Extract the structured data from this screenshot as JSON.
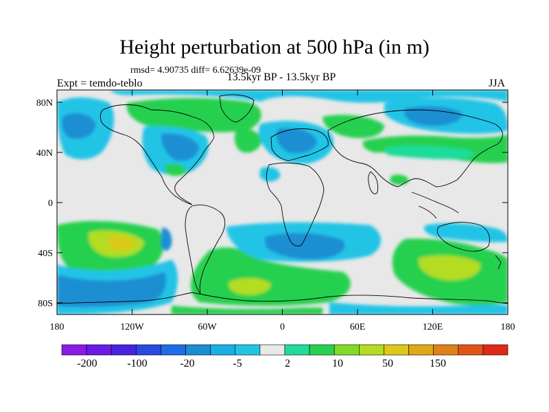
{
  "title": "Height perturbation at 500 hPa (in m)",
  "stats": "rmsd= 4.90735 diff= 6.62639e-09",
  "period": "13.5kyr BP - 13.5kyr BP",
  "experiment": "Expt = temdo-teblo",
  "season": "JJA",
  "map": {
    "lat_ticks": [
      "80N",
      "40N",
      "0",
      "40S",
      "80S"
    ],
    "lon_ticks": [
      "180",
      "120W",
      "60W",
      "0",
      "60E",
      "120E",
      "180"
    ]
  },
  "colorbar": {
    "labels": [
      "-200",
      "-100",
      "-20",
      "-5",
      "2",
      "10",
      "50",
      "150"
    ],
    "colors": [
      "#8a1be6",
      "#6a1be8",
      "#4a22e0",
      "#2a48e2",
      "#1e6ee6",
      "#1b8ed2",
      "#18aee6",
      "#22c4e6",
      "#e8e8e8",
      "#1fdc9a",
      "#28d050",
      "#80dc28",
      "#b4dc20",
      "#dcc818",
      "#e0a818",
      "#e08018",
      "#e05418",
      "#e02818"
    ]
  },
  "colors": {
    "land_outline": "#000000",
    "neutral_field": "#e8e8e8",
    "blue": "#1b8ed2",
    "light_blue": "#18aee6",
    "cyan": "#22c4e6",
    "green": "#28d050",
    "teal_green": "#1fdc9a",
    "yellow_green": "#b4dc20",
    "yellow": "#dcc818"
  }
}
